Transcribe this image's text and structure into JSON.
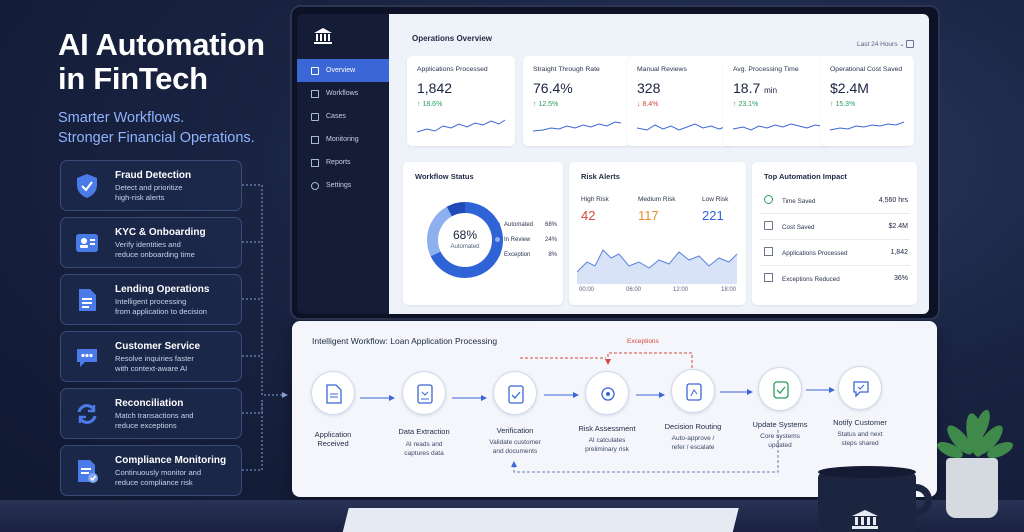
{
  "hero": {
    "title_line1": "AI Automation",
    "title_line2": "in FinTech",
    "subtitle_line1": "Smarter Workflows.",
    "subtitle_line2": "Stronger Financial Operations."
  },
  "features": [
    {
      "title": "Fraud Detection",
      "desc1": "Detect and prioritize",
      "desc2": "high-risk alerts",
      "icon": "shield-check-icon"
    },
    {
      "title": "KYC & Onboarding",
      "desc1": "Verify identities and",
      "desc2": "reduce onboarding time",
      "icon": "id-card-icon"
    },
    {
      "title": "Lending Operations",
      "desc1": "Intelligent processing",
      "desc2": "from application to decision",
      "icon": "document-icon"
    },
    {
      "title": "Customer Service",
      "desc1": "Resolve inquiries faster",
      "desc2": "with context-aware AI",
      "icon": "chat-bubble-icon"
    },
    {
      "title": "Reconciliation",
      "desc1": "Match transactions and",
      "desc2": "reduce exceptions",
      "icon": "refresh-icon"
    },
    {
      "title": "Compliance Monitoring",
      "desc1": "Continuously monitor and",
      "desc2": "reduce compliance risk",
      "icon": "checklist-icon"
    }
  ],
  "sidebar": {
    "items": [
      {
        "label": "Overview",
        "active": true
      },
      {
        "label": "Workflows"
      },
      {
        "label": "Cases"
      },
      {
        "label": "Monitoring"
      },
      {
        "label": "Reports"
      },
      {
        "label": "Settings"
      }
    ]
  },
  "dashboard": {
    "title": "Operations Overview",
    "range": "Last 24 Hours",
    "kpis": [
      {
        "label": "Applications Processed",
        "value": "1,842",
        "unit": "",
        "delta": "↑ 18.6%",
        "dir": "up"
      },
      {
        "label": "Straight Through Rate",
        "value": "76.4%",
        "unit": "",
        "delta": "↑ 12.5%",
        "dir": "up"
      },
      {
        "label": "Manual Reviews",
        "value": "328",
        "unit": "",
        "delta": "↓ 8.4%",
        "dir": "down"
      },
      {
        "label": "Avg. Processing Time",
        "value": "18.7",
        "unit": "min",
        "delta": "↑ 23.1%",
        "dir": "up"
      },
      {
        "label": "Operational Cost Saved",
        "value": "$2.4M",
        "unit": "",
        "delta": "↑ 15.3%",
        "dir": "up"
      }
    ],
    "workflow_status": {
      "title": "Workflow Status",
      "center_value": "68%",
      "center_label": "Automated",
      "legend": [
        {
          "label": "Automated",
          "value": "68%",
          "color": "#2f63d6"
        },
        {
          "label": "In Review",
          "value": "24%",
          "color": "#8fb0ee"
        },
        {
          "label": "Exception",
          "value": "8%",
          "color": "#2f63d6"
        }
      ],
      "fractions": [
        0.68,
        0.24,
        0.08
      ]
    },
    "risk": {
      "title": "Risk Alerts",
      "high_label": "High Risk",
      "high_value": "42",
      "high_color": "#d24a3c",
      "medium_label": "Medium Risk",
      "medium_value": "117",
      "medium_color": "#e0902a",
      "low_label": "Low Risk",
      "low_value": "221",
      "low_color": "#2f63d6",
      "axis": [
        "00:00",
        "06:00",
        "12:00",
        "18:00"
      ]
    },
    "impact": {
      "title": "Top Automation Impact",
      "rows": [
        {
          "label": "Time Saved",
          "value": "4,560 hrs",
          "icon": "clock-icon"
        },
        {
          "label": "Cost Saved",
          "value": "$2.4M",
          "icon": "cash-icon"
        },
        {
          "label": "Applications Processed",
          "value": "1,842",
          "icon": "document-icon"
        },
        {
          "label": "Exceptions Reduced",
          "value": "36%",
          "icon": "document-check-icon"
        }
      ]
    }
  },
  "workflow": {
    "title": "Intelligent Workflow: Loan Application Processing",
    "exceptions_label": "Exceptions",
    "steps": [
      {
        "title": "Application Received",
        "t1": "Application",
        "t2": "Received",
        "d1": "",
        "d2": "",
        "icon": "document-icon"
      },
      {
        "title": "Data Extraction",
        "t1": "Data Extraction",
        "t2": "",
        "d1": "AI reads and",
        "d2": "captures data",
        "icon": "extract-icon"
      },
      {
        "title": "Verification",
        "t1": "Verification",
        "t2": "",
        "d1": "Validate customer",
        "d2": "and documents",
        "icon": "verify-icon"
      },
      {
        "title": "Risk Assessment",
        "t1": "Risk Assessment",
        "t2": "",
        "d1": "AI calculates",
        "d2": "preliminary risk",
        "icon": "gear-icon"
      },
      {
        "title": "Decision Routing",
        "t1": "Decision Routing",
        "t2": "",
        "d1": "Auto-approve /",
        "d2": "refer / escalate",
        "icon": "routing-icon"
      },
      {
        "title": "Update Systems",
        "t1": "Update Systems",
        "t2": "",
        "d1": "Core systems",
        "d2": "updated",
        "icon": "database-icon"
      },
      {
        "title": "Notify Customer",
        "t1": "Notify Customer",
        "t2": "",
        "d1": "Status and next",
        "d2": "steps shared",
        "icon": "chat-icon"
      }
    ]
  },
  "colors": {
    "accent": "#3a66d6",
    "up": "#2a9d5c",
    "down": "#d24a3c"
  }
}
